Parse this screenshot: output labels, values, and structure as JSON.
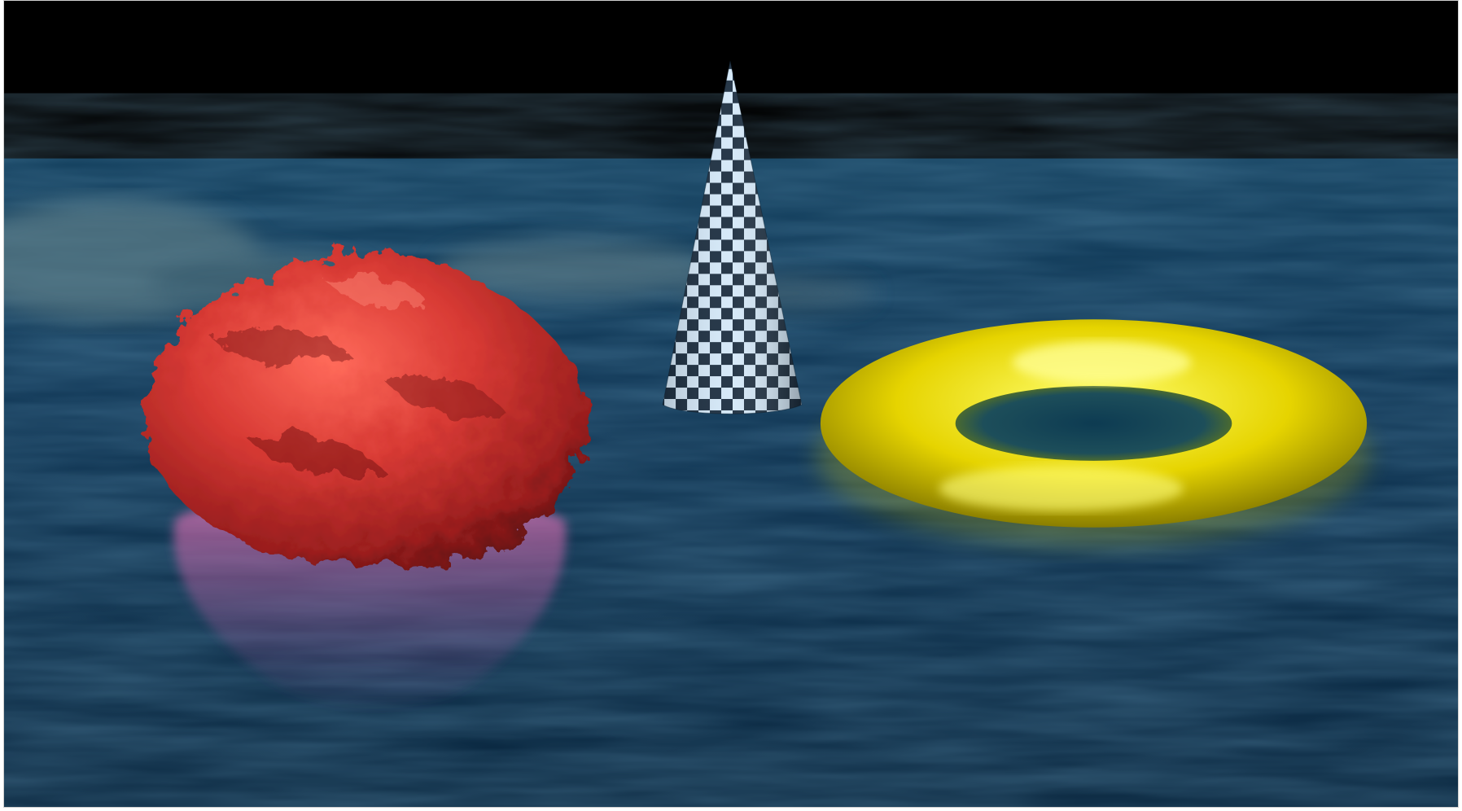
{
  "scene": {
    "colors": {
      "sky": "#000000",
      "ocean_top": "#0d3450",
      "ocean_mid": "#0a2f4c",
      "ocean_bottom": "#08263e",
      "rock": "#c8322f",
      "rock_highlight": "#ff7a6a",
      "rock_reflection": "#b45a9a",
      "torus": "#e8d800",
      "torus_highlight": "#ffff66",
      "cone_light": "#cfe4f6",
      "cone_dark": "#1a2a3a"
    },
    "objects": [
      {
        "name": "red-rock",
        "shape": "irregular sphere"
      },
      {
        "name": "checkered-cone",
        "shape": "cone"
      },
      {
        "name": "yellow-torus",
        "shape": "torus"
      }
    ]
  }
}
